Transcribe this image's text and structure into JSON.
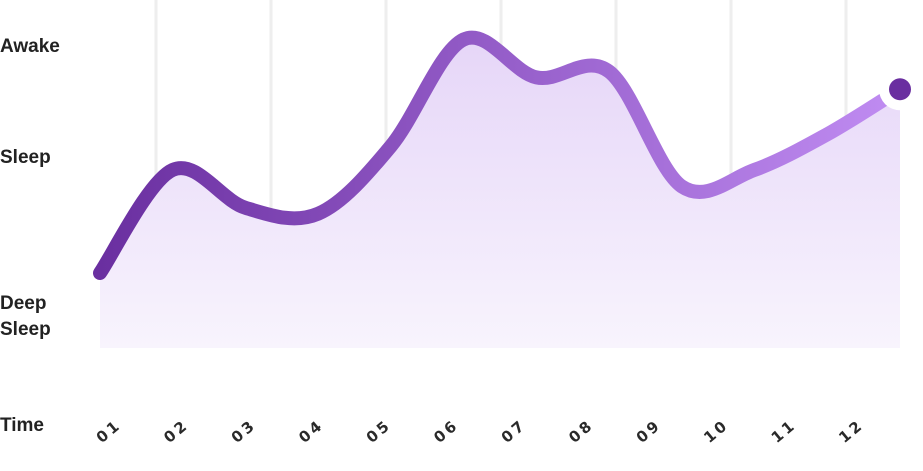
{
  "chart_data": {
    "type": "area",
    "y_levels": [
      "Deep\nSleep",
      "Sleep",
      "Awake"
    ],
    "xlabel": "Time",
    "x": [
      "01",
      "02",
      "03",
      "04",
      "05",
      "06",
      "07",
      "08",
      "09",
      "10",
      "11",
      "12"
    ],
    "values": [
      1.55,
      2.42,
      2.1,
      2.05,
      2.62,
      3.52,
      3.2,
      3.25,
      2.28,
      2.42,
      2.72,
      3.1
    ],
    "ylim": [
      0.9,
      3.6
    ],
    "grid": "vertical",
    "colors": {
      "line_start": "#6a2fa0",
      "line_end": "#c08cf2",
      "fill_top": "#e6d6f8",
      "fill_bottom": "#f7f2fd",
      "grid": "#eeeeee",
      "end_marker": "#6a2fa0"
    }
  }
}
